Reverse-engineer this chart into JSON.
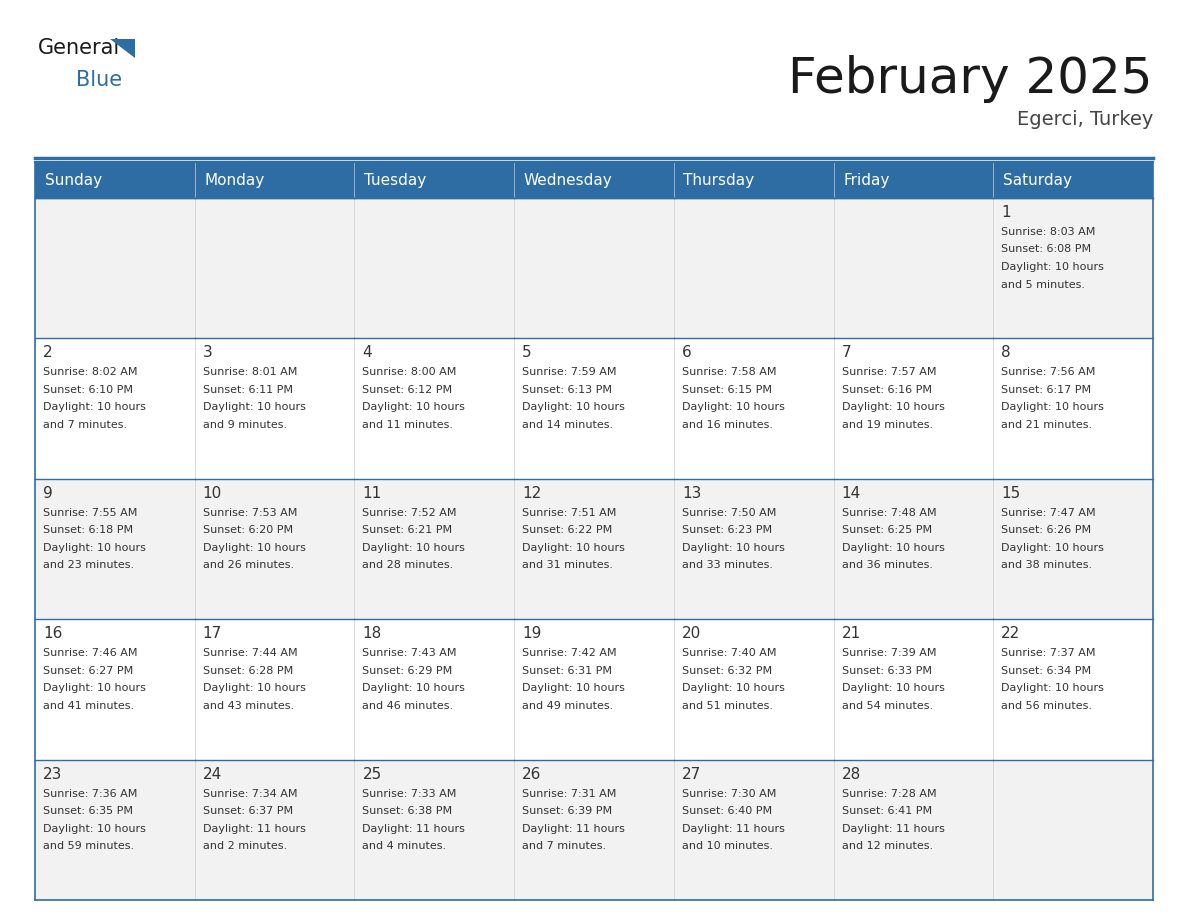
{
  "title": "February 2025",
  "subtitle": "Egerci, Turkey",
  "header_bg": "#2E6DA4",
  "header_text_color": "#FFFFFF",
  "cell_bg_light": "#F2F2F2",
  "cell_bg_white": "#FFFFFF",
  "border_color": "#2E6DA4",
  "text_color": "#333333",
  "days_of_week": [
    "Sunday",
    "Monday",
    "Tuesday",
    "Wednesday",
    "Thursday",
    "Friday",
    "Saturday"
  ],
  "calendar_data": [
    [
      null,
      null,
      null,
      null,
      null,
      null,
      {
        "day": "1",
        "sunrise": "8:03 AM",
        "sunset": "6:08 PM",
        "daylight": "10 hours",
        "daylight2": "and 5 minutes."
      }
    ],
    [
      {
        "day": "2",
        "sunrise": "8:02 AM",
        "sunset": "6:10 PM",
        "daylight": "10 hours",
        "daylight2": "and 7 minutes."
      },
      {
        "day": "3",
        "sunrise": "8:01 AM",
        "sunset": "6:11 PM",
        "daylight": "10 hours",
        "daylight2": "and 9 minutes."
      },
      {
        "day": "4",
        "sunrise": "8:00 AM",
        "sunset": "6:12 PM",
        "daylight": "10 hours",
        "daylight2": "and 11 minutes."
      },
      {
        "day": "5",
        "sunrise": "7:59 AM",
        "sunset": "6:13 PM",
        "daylight": "10 hours",
        "daylight2": "and 14 minutes."
      },
      {
        "day": "6",
        "sunrise": "7:58 AM",
        "sunset": "6:15 PM",
        "daylight": "10 hours",
        "daylight2": "and 16 minutes."
      },
      {
        "day": "7",
        "sunrise": "7:57 AM",
        "sunset": "6:16 PM",
        "daylight": "10 hours",
        "daylight2": "and 19 minutes."
      },
      {
        "day": "8",
        "sunrise": "7:56 AM",
        "sunset": "6:17 PM",
        "daylight": "10 hours",
        "daylight2": "and 21 minutes."
      }
    ],
    [
      {
        "day": "9",
        "sunrise": "7:55 AM",
        "sunset": "6:18 PM",
        "daylight": "10 hours",
        "daylight2": "and 23 minutes."
      },
      {
        "day": "10",
        "sunrise": "7:53 AM",
        "sunset": "6:20 PM",
        "daylight": "10 hours",
        "daylight2": "and 26 minutes."
      },
      {
        "day": "11",
        "sunrise": "7:52 AM",
        "sunset": "6:21 PM",
        "daylight": "10 hours",
        "daylight2": "and 28 minutes."
      },
      {
        "day": "12",
        "sunrise": "7:51 AM",
        "sunset": "6:22 PM",
        "daylight": "10 hours",
        "daylight2": "and 31 minutes."
      },
      {
        "day": "13",
        "sunrise": "7:50 AM",
        "sunset": "6:23 PM",
        "daylight": "10 hours",
        "daylight2": "and 33 minutes."
      },
      {
        "day": "14",
        "sunrise": "7:48 AM",
        "sunset": "6:25 PM",
        "daylight": "10 hours",
        "daylight2": "and 36 minutes."
      },
      {
        "day": "15",
        "sunrise": "7:47 AM",
        "sunset": "6:26 PM",
        "daylight": "10 hours",
        "daylight2": "and 38 minutes."
      }
    ],
    [
      {
        "day": "16",
        "sunrise": "7:46 AM",
        "sunset": "6:27 PM",
        "daylight": "10 hours",
        "daylight2": "and 41 minutes."
      },
      {
        "day": "17",
        "sunrise": "7:44 AM",
        "sunset": "6:28 PM",
        "daylight": "10 hours",
        "daylight2": "and 43 minutes."
      },
      {
        "day": "18",
        "sunrise": "7:43 AM",
        "sunset": "6:29 PM",
        "daylight": "10 hours",
        "daylight2": "and 46 minutes."
      },
      {
        "day": "19",
        "sunrise": "7:42 AM",
        "sunset": "6:31 PM",
        "daylight": "10 hours",
        "daylight2": "and 49 minutes."
      },
      {
        "day": "20",
        "sunrise": "7:40 AM",
        "sunset": "6:32 PM",
        "daylight": "10 hours",
        "daylight2": "and 51 minutes."
      },
      {
        "day": "21",
        "sunrise": "7:39 AM",
        "sunset": "6:33 PM",
        "daylight": "10 hours",
        "daylight2": "and 54 minutes."
      },
      {
        "day": "22",
        "sunrise": "7:37 AM",
        "sunset": "6:34 PM",
        "daylight": "10 hours",
        "daylight2": "and 56 minutes."
      }
    ],
    [
      {
        "day": "23",
        "sunrise": "7:36 AM",
        "sunset": "6:35 PM",
        "daylight": "10 hours",
        "daylight2": "and 59 minutes."
      },
      {
        "day": "24",
        "sunrise": "7:34 AM",
        "sunset": "6:37 PM",
        "daylight": "11 hours",
        "daylight2": "and 2 minutes."
      },
      {
        "day": "25",
        "sunrise": "7:33 AM",
        "sunset": "6:38 PM",
        "daylight": "11 hours",
        "daylight2": "and 4 minutes."
      },
      {
        "day": "26",
        "sunrise": "7:31 AM",
        "sunset": "6:39 PM",
        "daylight": "11 hours",
        "daylight2": "and 7 minutes."
      },
      {
        "day": "27",
        "sunrise": "7:30 AM",
        "sunset": "6:40 PM",
        "daylight": "11 hours",
        "daylight2": "and 10 minutes."
      },
      {
        "day": "28",
        "sunrise": "7:28 AM",
        "sunset": "6:41 PM",
        "daylight": "11 hours",
        "daylight2": "and 12 minutes."
      },
      null
    ]
  ],
  "logo_general_color": "#1a1a1a",
  "logo_blue_color": "#2E6DA4",
  "title_fontsize": 36,
  "subtitle_fontsize": 14,
  "header_fontsize": 11,
  "day_num_fontsize": 11,
  "cell_text_fontsize": 8
}
